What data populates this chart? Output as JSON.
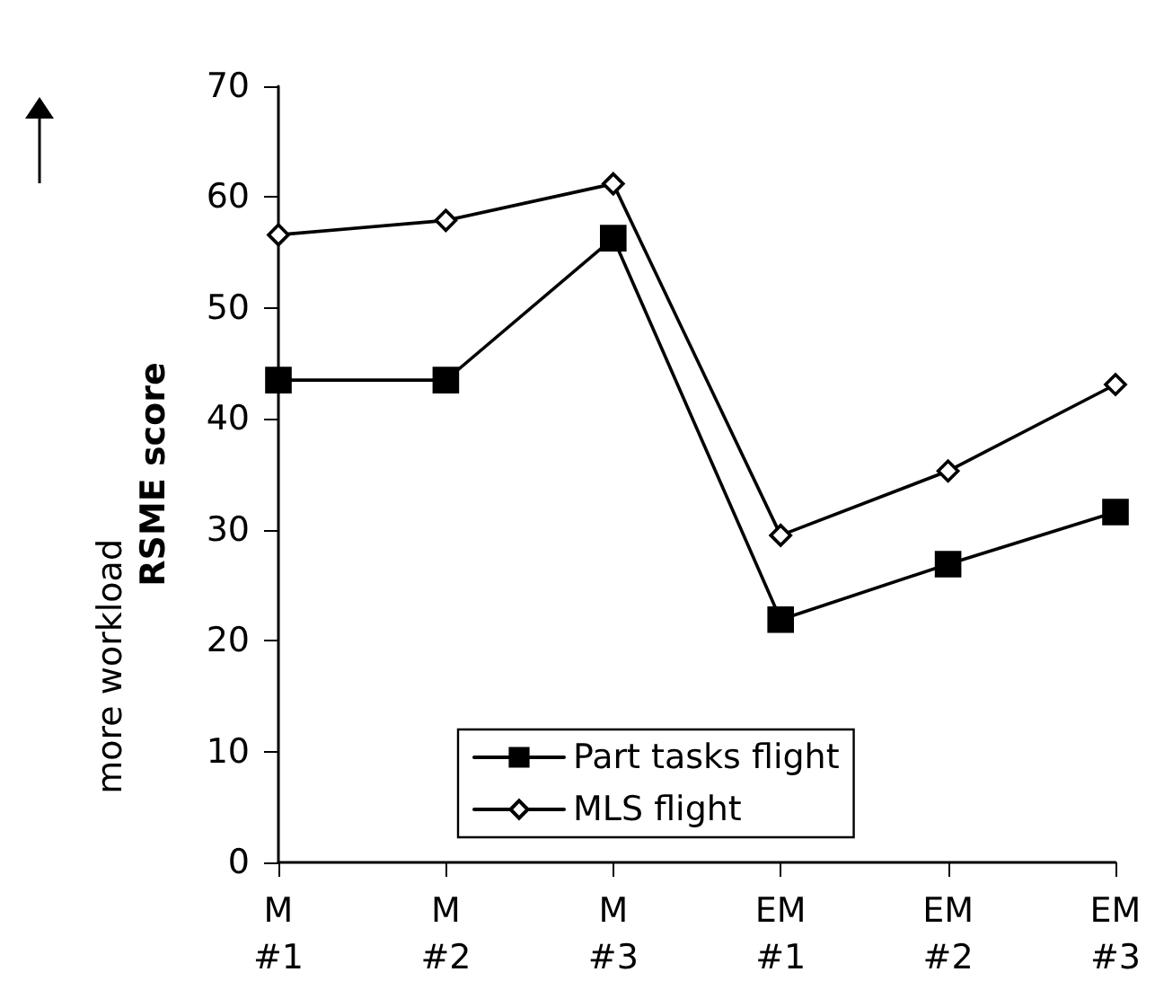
{
  "chart_data": {
    "type": "line",
    "ylabel": "RSME score",
    "annotations": [
      "more workload"
    ],
    "categories": [
      "M\n#1",
      "M\n#2",
      "M\n#3",
      "EM\n#1",
      "EM\n#2",
      "EM\n#3"
    ],
    "series": [
      {
        "name": "Part tasks flight",
        "color": "#000000",
        "marker": "square",
        "values": [
          43.5,
          43.5,
          56.3,
          21.9,
          26.9,
          31.6
        ]
      },
      {
        "name": "MLS flight",
        "color": "#000000",
        "marker": "diamond",
        "values": [
          56.6,
          57.9,
          61.2,
          29.5,
          35.3,
          43.1
        ]
      }
    ],
    "ylim": [
      0,
      70
    ],
    "yticks": [
      0,
      10,
      20,
      30,
      40,
      50,
      60,
      70
    ],
    "grid": false,
    "legend": "bottom",
    "line_style": "solid"
  }
}
